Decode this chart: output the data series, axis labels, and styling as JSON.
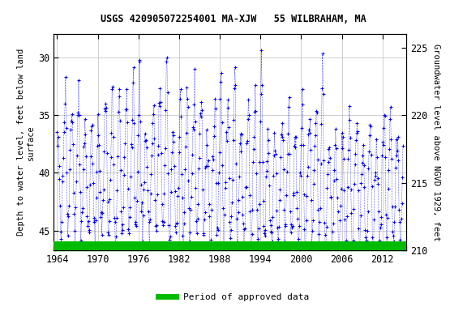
{
  "title": "USGS 420905072254001 MA-XJW   55 WILBRAHAM, MA",
  "ylabel_left": "Depth to water level, feet below land\nsurface",
  "ylabel_right": "Groundwater level above NGVD 1929, feet",
  "ylim_left": [
    46.7,
    28.0
  ],
  "ylim_right": [
    210.3,
    226.0
  ],
  "xlim": [
    1963.5,
    2015.5
  ],
  "xticks": [
    1964,
    1970,
    1976,
    1982,
    1988,
    1994,
    2000,
    2006,
    2012
  ],
  "yticks_left": [
    30,
    35,
    40,
    45
  ],
  "yticks_right": [
    225,
    220,
    215,
    210
  ],
  "data_color": "#0000FF",
  "grid_color": "#c8c8c8",
  "bar_color": "#00BB00",
  "legend_label": "Period of approved data",
  "background_color": "#ffffff"
}
